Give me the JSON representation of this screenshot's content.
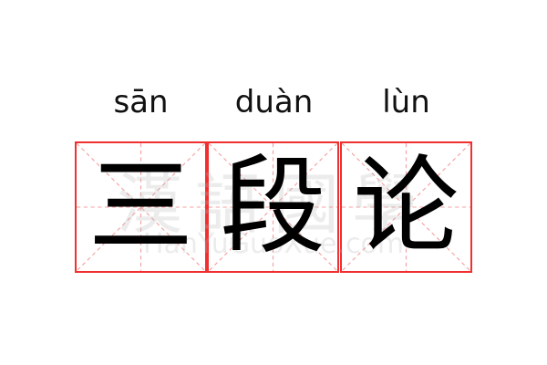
{
  "pinyin": [
    "sān",
    "duàn",
    "lùn"
  ],
  "characters": [
    "三",
    "段",
    "论"
  ],
  "watermark": {
    "chinese": "漢語國學",
    "latin": "HanYuGuoXue.com"
  },
  "colors": {
    "border": "#f03030",
    "guide": "#f4a0a0"
  }
}
